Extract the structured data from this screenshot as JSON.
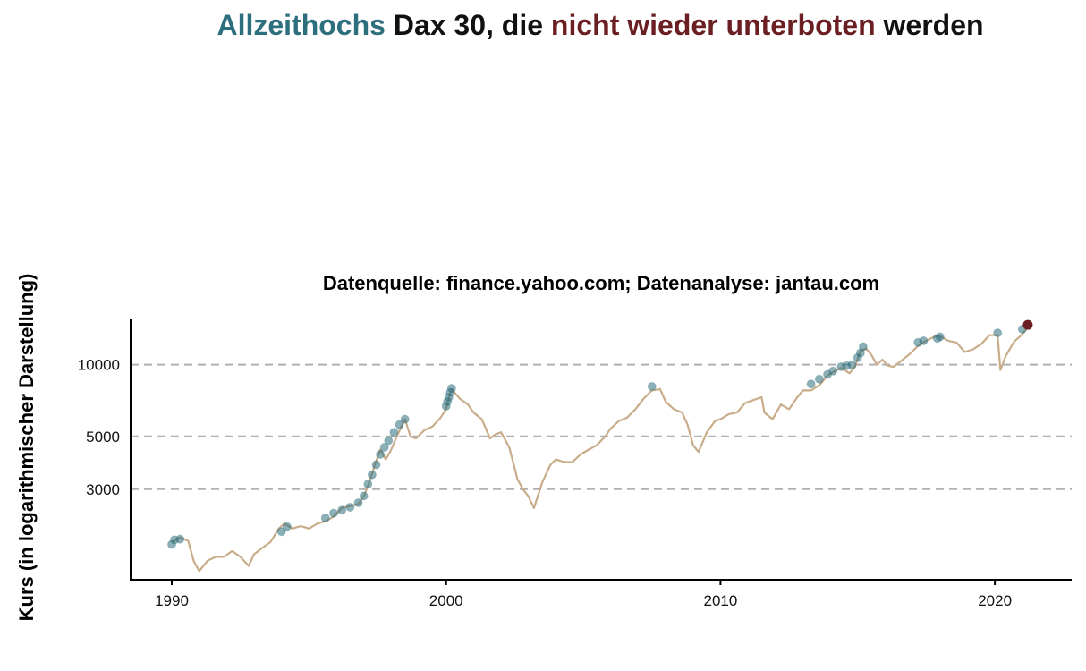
{
  "title": {
    "part1": "Allzeithochs",
    "part2": " Dax 30, die ",
    "part3": "nicht wieder unterboten",
    "part4": " werden"
  },
  "colors": {
    "ath": "#2e6f7d",
    "final": "#6b1f22",
    "line": "#c9ad8a",
    "grid": "#b0b0b0",
    "axis": "#000000"
  },
  "chart_data": {
    "type": "line",
    "title": "Allzeithochs Dax 30, die nicht wieder unterboten werden",
    "subtitle": "Datenquelle: finance.yahoo.com; Datenanalyse: jantau.com",
    "xlabel": "",
    "ylabel": "Kurs (in logarithmischer Darstellung)",
    "y_scale": "log",
    "xlim": [
      1988.5,
      2022.8
    ],
    "ylim": [
      1250,
      15500
    ],
    "x_ticks": [
      "1990",
      "2000",
      "2010",
      "2020"
    ],
    "y_ticks": [
      "3000",
      "5000",
      "10000"
    ],
    "grid": "horizontal dashed at y ticks",
    "series": [
      {
        "kind": "line",
        "x": [
          1990.0,
          1990.3,
          1990.6,
          1990.8,
          1991.0,
          1991.3,
          1991.6,
          1991.9,
          1992.2,
          1992.5,
          1992.8,
          1993.0,
          1993.3,
          1993.6,
          1993.9,
          1994.1,
          1994.4,
          1994.7,
          1995.0,
          1995.3,
          1995.6,
          1995.9,
          1996.2,
          1996.5,
          1996.8,
          1997.0,
          1997.2,
          1997.4,
          1997.6,
          1997.8,
          1998.0,
          1998.2,
          1998.5,
          1998.7,
          1998.9,
          1999.2,
          1999.5,
          1999.8,
          2000.0,
          2000.2,
          2000.5,
          2000.8,
          2001.0,
          2001.3,
          2001.6,
          2001.8,
          2002.0,
          2002.3,
          2002.6,
          2002.8,
          2003.0,
          2003.2,
          2003.5,
          2003.8,
          2004.0,
          2004.3,
          2004.6,
          2004.9,
          2005.2,
          2005.5,
          2005.8,
          2006.0,
          2006.3,
          2006.6,
          2006.9,
          2007.2,
          2007.5,
          2007.8,
          2008.0,
          2008.3,
          2008.6,
          2008.8,
          2009.0,
          2009.2,
          2009.5,
          2009.8,
          2010.0,
          2010.3,
          2010.6,
          2010.9,
          2011.2,
          2011.5,
          2011.6,
          2011.9,
          2012.2,
          2012.5,
          2012.8,
          2013.0,
          2013.3,
          2013.6,
          2013.9,
          2014.1,
          2014.4,
          2014.7,
          2014.9,
          2015.1,
          2015.3,
          2015.5,
          2015.7,
          2015.9,
          2016.1,
          2016.3,
          2016.6,
          2016.9,
          2017.2,
          2017.5,
          2017.8,
          2018.0,
          2018.3,
          2018.6,
          2018.9,
          2019.2,
          2019.5,
          2019.8,
          2020.1,
          2020.2,
          2020.4,
          2020.7,
          2021.0,
          2021.2
        ],
        "y": [
          1800,
          1880,
          1820,
          1500,
          1360,
          1500,
          1560,
          1560,
          1650,
          1560,
          1430,
          1600,
          1700,
          1800,
          2050,
          2150,
          2050,
          2100,
          2050,
          2150,
          2200,
          2300,
          2500,
          2550,
          2600,
          2800,
          3200,
          3800,
          4400,
          4000,
          4400,
          5000,
          5900,
          5000,
          4900,
          5300,
          5500,
          6000,
          6500,
          7900,
          7200,
          6800,
          6300,
          5900,
          4900,
          5100,
          5200,
          4500,
          3300,
          3000,
          2800,
          2500,
          3200,
          3800,
          4000,
          3900,
          3900,
          4200,
          4400,
          4600,
          5000,
          5400,
          5800,
          6000,
          6500,
          7200,
          7800,
          7900,
          7000,
          6500,
          6300,
          5600,
          4600,
          4300,
          5200,
          5800,
          5900,
          6200,
          6300,
          6900,
          7100,
          7300,
          6300,
          5900,
          6800,
          6500,
          7300,
          7800,
          7800,
          8200,
          9000,
          9300,
          9700,
          9200,
          9800,
          11400,
          11700,
          11000,
          10000,
          10500,
          9900,
          9800,
          10400,
          11100,
          12000,
          12600,
          13100,
          13200,
          12600,
          12400,
          11300,
          11600,
          12200,
          13300,
          13300,
          9500,
          10900,
          12500,
          13400,
          14400
        ]
      },
      {
        "kind": "points",
        "name": "Allzeithochs",
        "x": [
          1990.0,
          1990.1,
          1990.3,
          1994.0,
          1994.2,
          1995.6,
          1995.9,
          1996.2,
          1996.5,
          1996.8,
          1997.0,
          1997.15,
          1997.3,
          1997.45,
          1997.6,
          1997.75,
          1997.9,
          1998.1,
          1998.3,
          1998.5,
          2000.0,
          2000.05,
          2000.1,
          2000.15,
          2000.2,
          2007.5,
          2013.3,
          2013.6,
          2013.9,
          2014.1,
          2014.4,
          2014.6,
          2014.8,
          2015.0,
          2015.1,
          2015.2,
          2017.2,
          2017.4,
          2017.9,
          2018.0,
          2020.1,
          2021.0
        ],
        "y": [
          1760,
          1840,
          1850,
          1990,
          2090,
          2270,
          2380,
          2450,
          2520,
          2630,
          2810,
          3150,
          3450,
          3800,
          4200,
          4500,
          4800,
          5200,
          5600,
          5900,
          6700,
          7000,
          7300,
          7650,
          7950,
          8100,
          8300,
          8700,
          9100,
          9400,
          9800,
          9900,
          10000,
          10700,
          11200,
          11900,
          12400,
          12600,
          12900,
          13100,
          13600,
          14100
        ]
      },
      {
        "kind": "point",
        "name": "nicht wieder unterboten",
        "x": [
          2021.2
        ],
        "y": [
          14700
        ]
      }
    ]
  }
}
